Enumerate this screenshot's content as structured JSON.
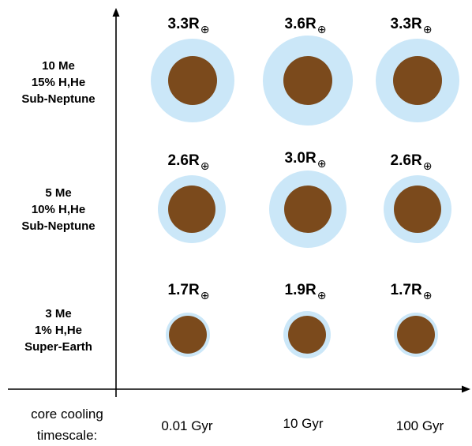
{
  "rows": [
    {
      "lines": [
        "10 Me",
        "15% H,He",
        "Sub-Neptune"
      ],
      "radii": [
        "3.3",
        "3.6",
        "3.3"
      ]
    },
    {
      "lines": [
        "5 Me",
        "10% H,He",
        "Sub-Neptune"
      ],
      "radii": [
        "2.6",
        "3.0",
        "2.6"
      ]
    },
    {
      "lines": [
        "3 Me",
        "1% H,He",
        "Super-Earth"
      ],
      "radii": [
        "1.7",
        "1.9",
        "1.7"
      ]
    }
  ],
  "radius_unit": "R",
  "earth_symbol": "⊕",
  "columns": [
    "0.01 Gyr",
    "10 Gyr",
    "100 Gyr"
  ],
  "x_axis_caption": [
    "core cooling",
    "timescale:"
  ],
  "colors": {
    "envelope": "#cbe7f8",
    "core": "#7b4a1c",
    "axis": "#000000"
  }
}
